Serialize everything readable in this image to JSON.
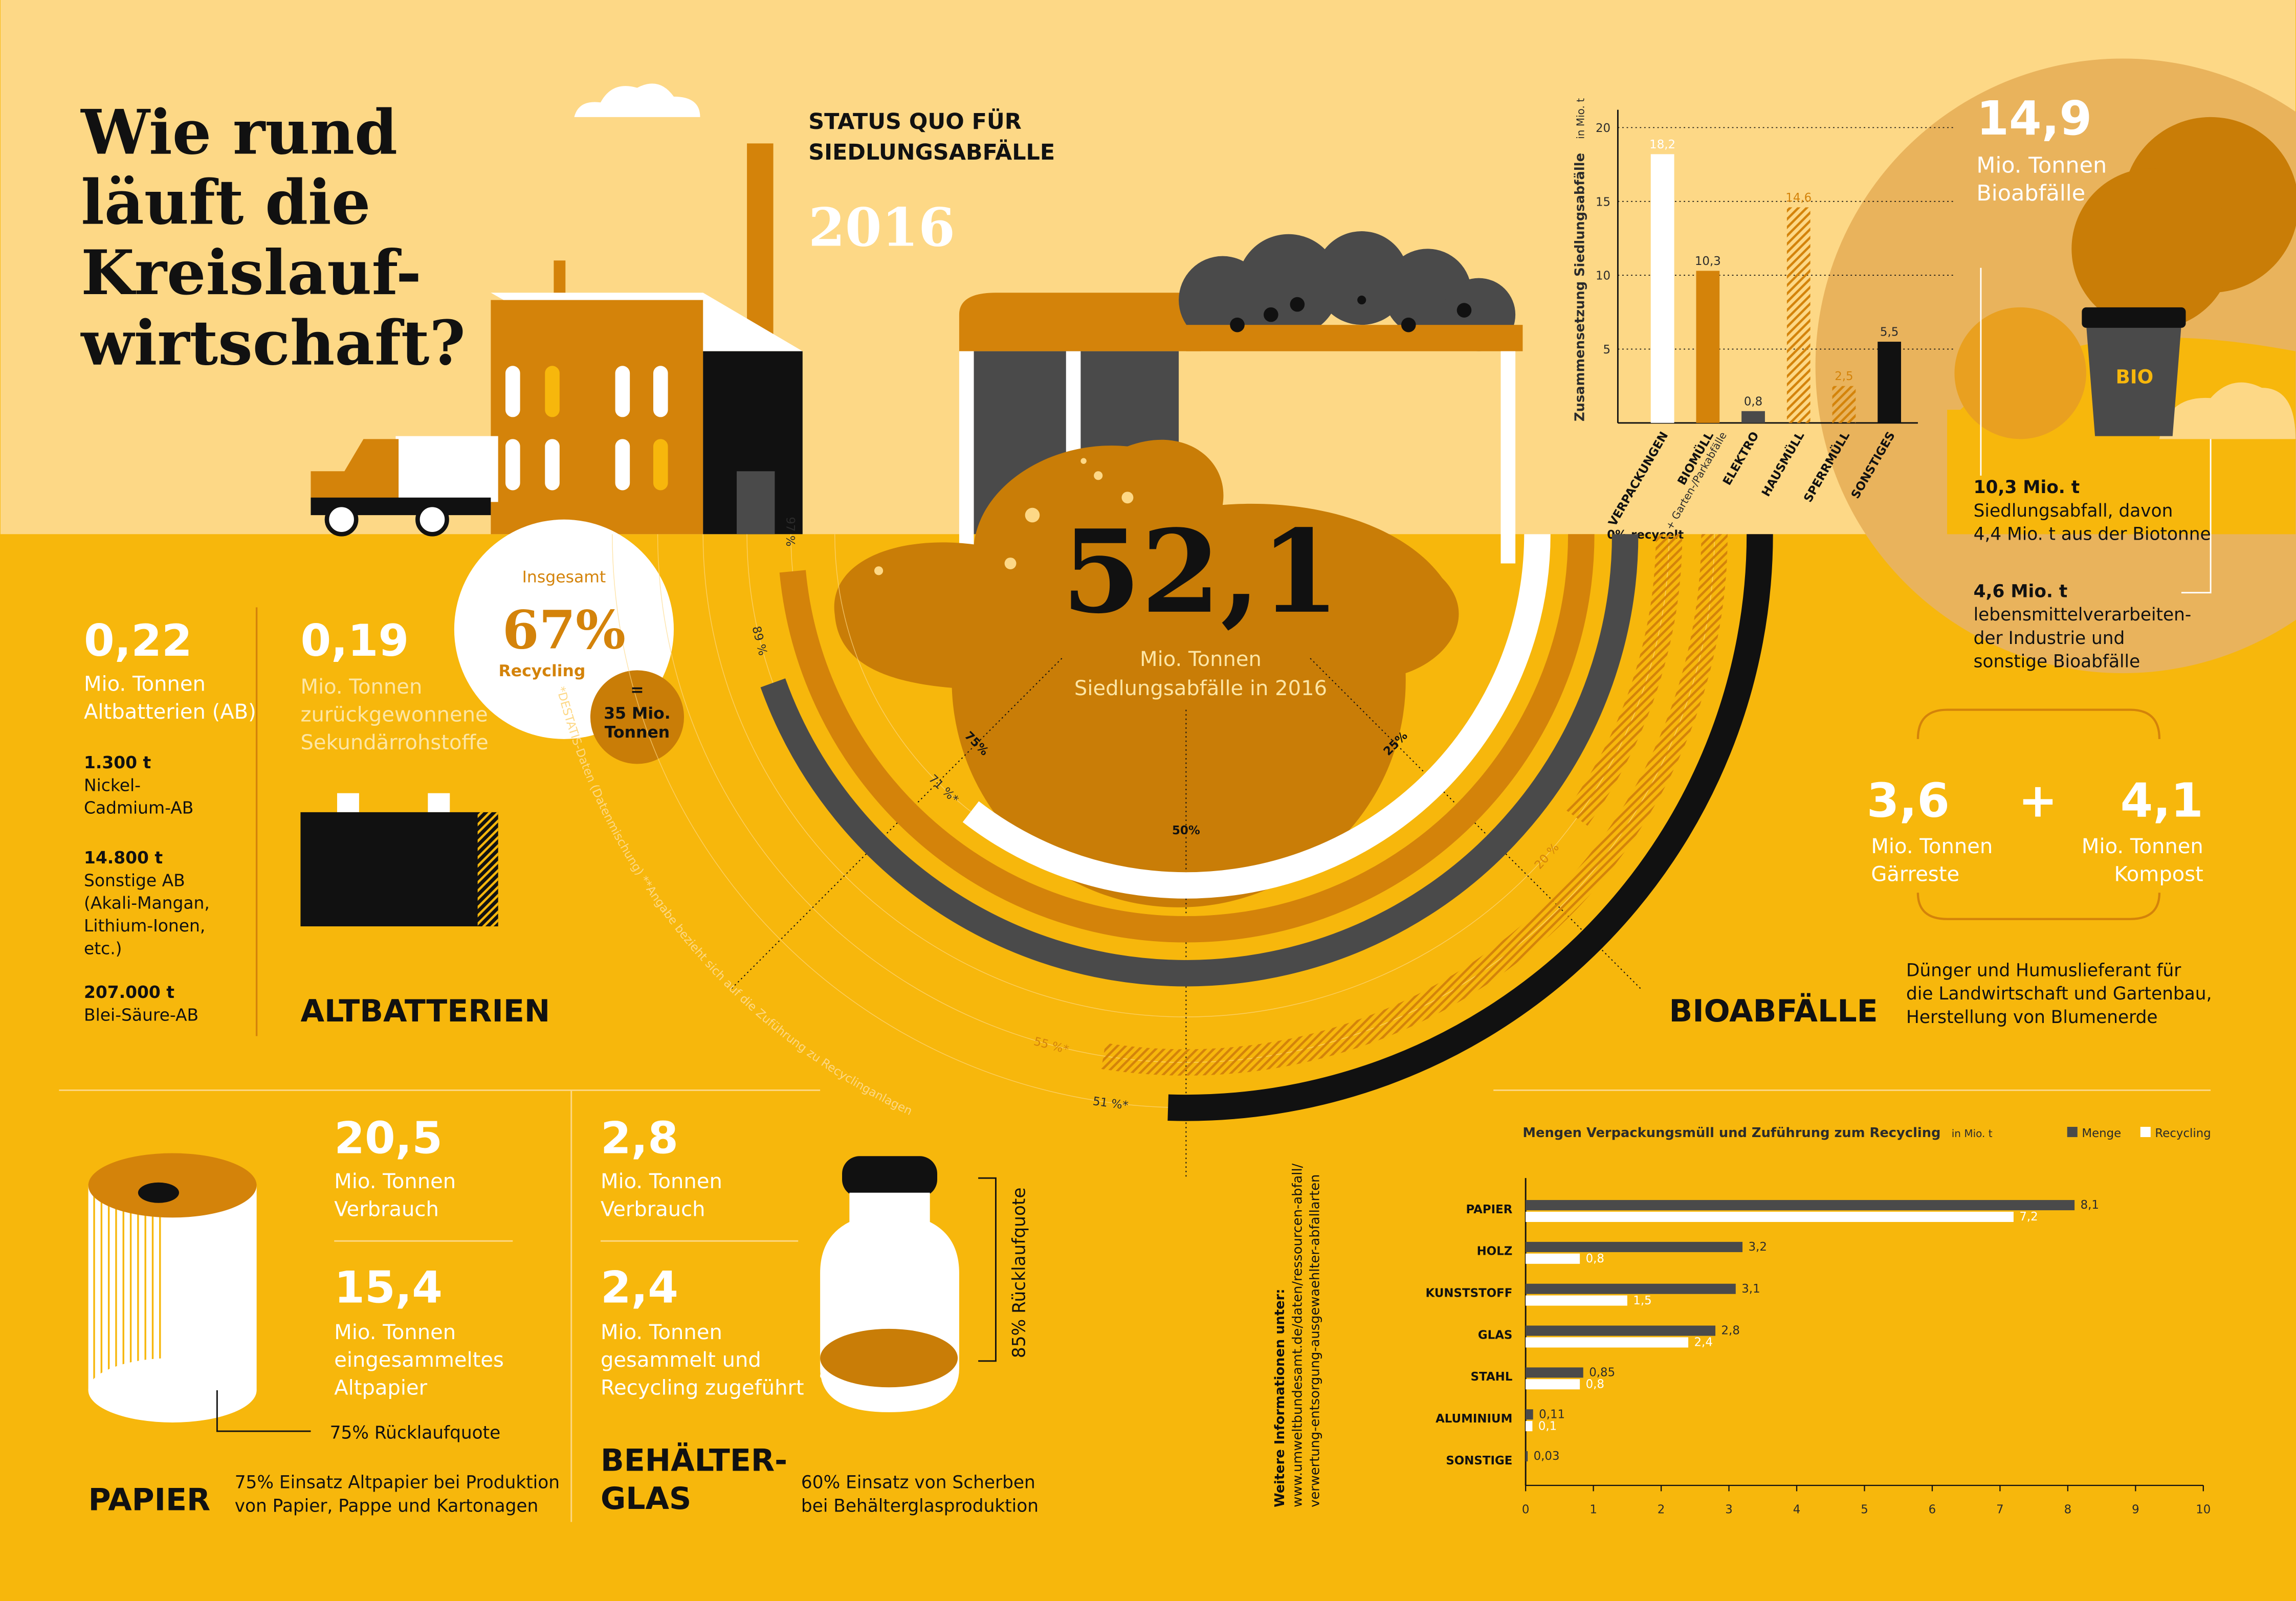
{
  "chart_data": [
    {
      "type": "bar",
      "title": "Zusammensetzung Siedlungsabfälle",
      "unit": "in Mio. t",
      "categories": [
        "VERPACKUNGEN",
        "BIOMÜLL",
        "ELEKTRO",
        "HAUSMÜLL",
        "SPERRMÜLL",
        "SONSTIGES"
      ],
      "category_notes": [
        null,
        "+ Garten-/Parkabfälle",
        null,
        null,
        null,
        null
      ],
      "values": [
        18.2,
        10.3,
        0.8,
        14.6,
        2.5,
        5.5
      ],
      "value_labels": [
        "18,2",
        "10,3",
        "0,8",
        "14,6",
        "2,5",
        "5,5"
      ],
      "colors": [
        "#ffffff",
        "#d4830a",
        "#4a4a4a",
        "#d4830a",
        "#d4830a",
        "#111111"
      ],
      "hatched": [
        false,
        false,
        false,
        true,
        true,
        false
      ],
      "ylim": [
        0,
        22
      ],
      "yticks": [
        5,
        10,
        15,
        20
      ],
      "grid": true
    },
    {
      "type": "hbar",
      "title": "Mengen Verpackungsmüll und Zuführung zum Recycling",
      "unit": "in Mio. t",
      "categories": [
        "PAPIER",
        "HOLZ",
        "KUNSTSTOFF",
        "GLAS",
        "STAHL",
        "ALUMINIUM",
        "SONSTIGE"
      ],
      "series": [
        {
          "name": "Menge",
          "color": "#4a4a4a",
          "values": [
            8.1,
            3.2,
            3.1,
            2.8,
            0.85,
            0.11,
            0.03
          ],
          "value_labels": [
            "8,1",
            "3,2",
            "3,1",
            "2,8",
            "0,85",
            "0,11",
            "0,03"
          ]
        },
        {
          "name": "Recycling",
          "color": "#ffffff",
          "values": [
            7.2,
            0.8,
            1.5,
            2.4,
            0.8,
            0.1,
            null
          ],
          "value_labels": [
            "7,2",
            "0,8",
            "1,5",
            "2,4",
            "0,8",
            "0,1",
            null
          ]
        }
      ],
      "xlim": [
        0,
        10
      ],
      "xticks": [
        0,
        1,
        2,
        3,
        4,
        5,
        6,
        7,
        8,
        9,
        10
      ],
      "legend": "top-right"
    },
    {
      "type": "arc",
      "values": [
        71,
        97,
        89,
        20,
        55,
        51
      ],
      "value_labels": [
        "71 %*",
        "97 %",
        "89 %",
        "20 %",
        "55 %*",
        "51 %*"
      ],
      "colors": [
        "#ffffff",
        "#d4830a",
        "#4a4a4a",
        "#d4830a",
        "#d4830a",
        "#111111"
      ],
      "hatched": [
        false,
        false,
        false,
        true,
        true,
        false
      ],
      "ticks": [
        {
          "value": 0,
          "label": "0% recycelt"
        },
        {
          "value": 25,
          "label": "25%"
        },
        {
          "value": 50,
          "label": "50%"
        },
        {
          "value": 75,
          "label": "75%"
        }
      ],
      "note": "*DESTATIS-Daten (Datenmischung) **Angabe bezieht sich auf die Zuführung zu Recyclinganlagen"
    }
  ],
  "infographic": {
    "title": [
      "Wie rund",
      "läuft die",
      "Kreislauf-",
      "wirtschaft?"
    ],
    "status": [
      "STATUS QUO FÜR",
      "SIEDLUNGSABFÄLLE"
    ],
    "year": "2016",
    "total": {
      "value": "52,1",
      "text": [
        "Mio. Tonnen",
        "Siedlungsabfälle in 2016"
      ]
    },
    "recycling": {
      "pre": "Insgesamt",
      "value": "67%",
      "post": "Recycling",
      "eq": "=",
      "amount": [
        "35 Mio.",
        "Tonnen"
      ]
    },
    "bio": {
      "value": "14,9",
      "text": [
        "Mio. Tonnen",
        "Bioabfälle"
      ],
      "bin": "BIO",
      "source1": [
        "10,3 Mio. t",
        "Siedlungsabfall, davon",
        "4,4 Mio. t aus der Biotonne"
      ],
      "source2": [
        "4,6 Mio. t",
        "lebensmittelverarbeiten-",
        "der Industrie und",
        "sonstige Bioabfälle"
      ],
      "a_value": "3,6",
      "a_text": [
        "Mio. Tonnen",
        "Gärreste"
      ],
      "plus": "+",
      "b_value": "4,1",
      "b_text": [
        "Mio. Tonnen",
        "Kompost"
      ],
      "use": [
        "Dünger und Humuslieferant für",
        "die Landwirtschaft und Gartenbau,",
        "Herstellung von Blumenerde"
      ],
      "heading": "BIOABFÄLLE"
    },
    "batteries": {
      "value": "0,22",
      "text": [
        "Mio. Tonnen",
        "Altbatterien (AB)"
      ],
      "items": [
        [
          "1.300 t",
          "Nickel-",
          "Cadmium-AB"
        ],
        [
          "14.800 t",
          "Sonstige AB",
          "(Akali-Mangan,",
          "Lithium-Ionen,",
          "etc.)"
        ],
        [
          "207.000 t",
          "Blei-Säure-AB"
        ]
      ],
      "recovered": "0,19",
      "recovered_text": [
        "Mio. Tonnen",
        "zurückgewonnene",
        "Sekundärrohstoffe"
      ],
      "heading": "ALTBATTERIEN"
    },
    "paper": {
      "use": "20,5",
      "use_text": [
        "Mio. Tonnen",
        "Verbrauch"
      ],
      "collected": "15,4",
      "collected_text": [
        "Mio. Tonnen",
        "eingesammeltes",
        "Altpapier"
      ],
      "rate": "75% Rücklaufquote",
      "heading": "PAPIER",
      "note": [
        "75% Einsatz Altpapier bei Produktion",
        "von Papier, Pappe und Kartonagen"
      ]
    },
    "glass": {
      "use": "2,8",
      "use_text": [
        "Mio. Tonnen",
        "Verbrauch"
      ],
      "collected": "2,4",
      "collected_text": [
        "Mio. Tonnen",
        "gesammelt und",
        "Recycling zugeführt"
      ],
      "rate": "85% Rücklaufquote",
      "heading": [
        "BEHÄLTER-",
        "GLAS"
      ],
      "note": [
        "60% Einsatz von Scherben",
        "bei Behälterglasproduktion"
      ]
    },
    "info": [
      "Weitere Informationen unter:",
      "www.umweltbundesamt.de/daten/ressourcen-abfall/",
      "verwertung-entsorgung-ausgewaehlter-abfallarten"
    ]
  }
}
